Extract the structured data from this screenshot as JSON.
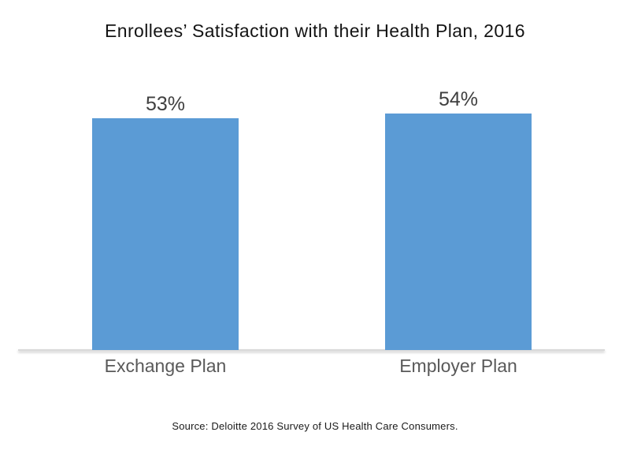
{
  "title": "Enrollees’ Satisfaction with their Health Plan, 2016",
  "source_note": "Source: Deloitte 2016 Survey of US Health Care Consumers.",
  "colors": {
    "bar_fill": "#5B9BD5",
    "axis_line": "#d9d9d9",
    "value_label": "#3f3f3f",
    "category_label": "#595959",
    "title_text": "#141414"
  },
  "chart_data": {
    "type": "bar",
    "title": "Enrollees’ Satisfaction with their Health Plan, 2016",
    "categories": [
      "Exchange Plan",
      "Employer Plan"
    ],
    "values": [
      53,
      54
    ],
    "value_labels": [
      "53%",
      "54%"
    ],
    "xlabel": "",
    "ylabel": "",
    "ylim": [
      0,
      80
    ],
    "grid": false,
    "legend": false,
    "y_axis_visible": false,
    "annotations": [
      "Source: Deloitte 2016 Survey of US Health Care Consumers."
    ]
  }
}
